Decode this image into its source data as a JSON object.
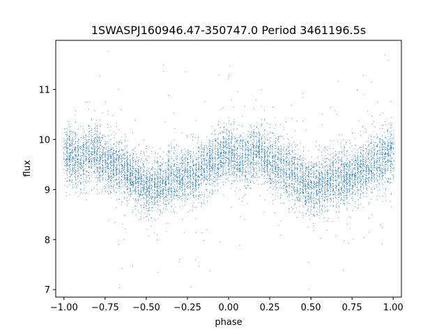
{
  "chart_data": {
    "type": "scatter",
    "title": "1SWASPJ160946.47-350747.0 Period 3461196.5s",
    "xlabel": "phase",
    "ylabel": "flux",
    "xlim": [
      -1.05,
      1.05
    ],
    "ylim": [
      6.85,
      11.98
    ],
    "xticks": [
      -1.0,
      -0.75,
      -0.5,
      -0.25,
      0.0,
      0.25,
      0.5,
      0.75,
      1.0
    ],
    "xtick_labels": [
      "−1.00",
      "−0.75",
      "−0.50",
      "−0.25",
      "0.00",
      "0.25",
      "0.50",
      "0.75",
      "1.00"
    ],
    "yticks": [
      7,
      8,
      9,
      10,
      11
    ],
    "ytick_labels": [
      "7",
      "8",
      "9",
      "10",
      "11"
    ],
    "grid": false,
    "marker_color": "#1f77b4",
    "trend": {
      "x": [
        -1.0,
        -0.9,
        -0.82,
        -0.75,
        -0.68,
        -0.6,
        -0.5,
        -0.4,
        -0.3,
        -0.2,
        -0.1,
        0.0,
        0.1,
        0.18,
        0.25,
        0.32,
        0.4,
        0.5,
        0.6,
        0.7,
        0.8,
        0.9,
        1.0
      ],
      "y": [
        9.75,
        9.55,
        9.8,
        9.55,
        9.45,
        9.3,
        9.05,
        9.15,
        9.25,
        9.35,
        9.55,
        9.75,
        9.55,
        9.8,
        9.55,
        9.45,
        9.3,
        9.05,
        9.15,
        9.25,
        9.35,
        9.55,
        9.75
      ]
    },
    "scatter_sigma": 0.28,
    "n_points": 9000
  }
}
